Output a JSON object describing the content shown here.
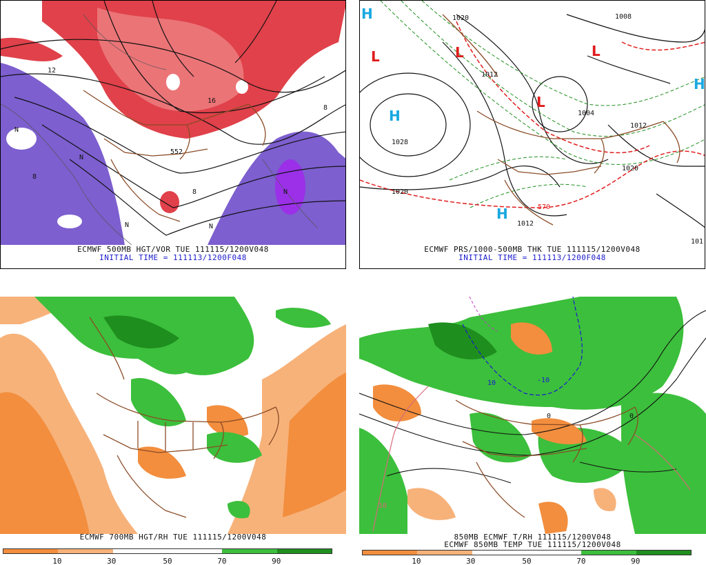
{
  "panels": {
    "top_left": {
      "caption_line1": "ECMWF 500MB HGT/VOR TUE 111115/1200V048",
      "caption_line2": "INITIAL TIME = 111113/1200F048",
      "contour_labels": [
        "552",
        "8",
        "8",
        "8",
        "12",
        "16",
        "N",
        "N",
        "N",
        "N",
        "N"
      ]
    },
    "top_right": {
      "caption_line1": "ECMWF PRS/1000-500MB THK TUE 111115/1200V048",
      "caption_line2": "INITIAL TIME = 111113/1200F048",
      "pressure_labels": [
        "1020",
        "1028",
        "1020",
        "1012",
        "1004",
        "1012",
        "1020",
        "1012",
        "1008",
        "101",
        "570"
      ],
      "high_symbol": "H",
      "low_symbol": "L"
    },
    "bottom_left": {
      "caption_line1": "ECMWF 700MB HGT/RH TUE 111115/1200V048",
      "colorbar_ticks": [
        "10",
        "30",
        "50",
        "70",
        "90"
      ]
    },
    "bottom_right": {
      "caption_line1": "850MB ECMWF T/RH 111115/1200V048",
      "caption_line2": "ECMWF 850MB TEMP TUE 111115/1200V048",
      "temp_labels": [
        "10",
        "-10",
        "10",
        "0",
        "0"
      ],
      "colorbar_ticks": [
        "10",
        "30",
        "50",
        "70",
        "90"
      ]
    }
  },
  "colors": {
    "vorticity_red": "#e0414a",
    "vorticity_red_light": "#f08a8a",
    "vorticity_purple": "#7d5fcf",
    "vorticity_purple_dark": "#9b30e8",
    "rh_dry_dark": "#f28e3e",
    "rh_dry_light": "#f7b27a",
    "rh_moist": "#3cbf3c",
    "rh_moist_dark": "#1e8e1e",
    "borders": "#8a4b26",
    "high_blue": "#19a8e0",
    "low_red": "#e01c1c"
  }
}
